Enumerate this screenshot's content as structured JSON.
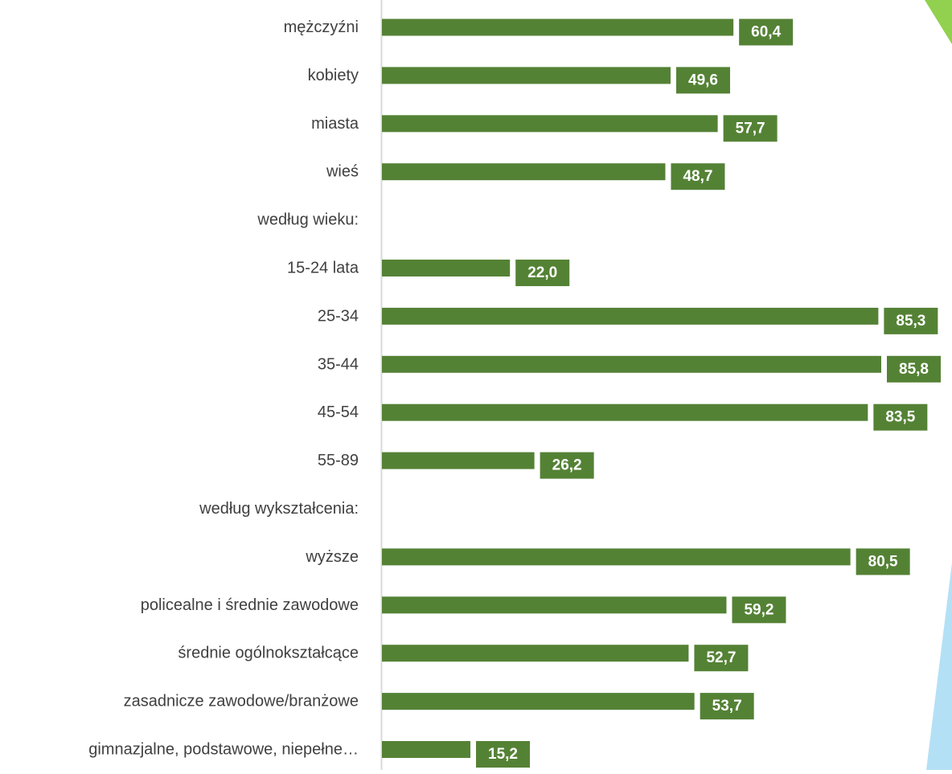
{
  "colors": {
    "bar": "#548235",
    "label_box": "#548235",
    "label_text": "#ffffff",
    "category_text": "#404040",
    "axis": "#d9d9d9",
    "accent_green": "#92d050",
    "accent_blue": "#b4e0f5"
  },
  "chart_data": {
    "type": "bar",
    "orientation": "horizontal",
    "title": "",
    "xlabel": "",
    "ylabel": "",
    "xlim": [
      0,
      89
    ],
    "grid": false,
    "legend": "none",
    "categories": [
      "mężczyźni",
      "kobiety",
      "miasta",
      "wieś",
      "według wieku:",
      "15-24 lata",
      "25-34",
      "35-44",
      "45-54",
      "55-89",
      "według wykształcenia:",
      "wyższe",
      "policealne i średnie zawodowe",
      "średnie ogólnokształcące",
      "zasadnicze zawodowe/branżowe",
      "gimnazjalne, podstawowe, niepełne…"
    ],
    "values": [
      60.4,
      49.6,
      57.7,
      48.7,
      null,
      22.0,
      85.3,
      85.8,
      83.5,
      26.2,
      null,
      80.5,
      59.2,
      52.7,
      53.7,
      15.2
    ],
    "value_labels": [
      "60,4",
      "49,6",
      "57,7",
      "48,7",
      "",
      "22,0",
      "85,3",
      "85,8",
      "83,5",
      "26,2",
      "",
      "80,5",
      "59,2",
      "52,7",
      "53,7",
      "15,2"
    ]
  }
}
